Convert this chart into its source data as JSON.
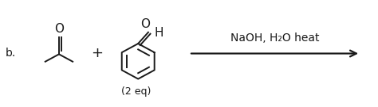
{
  "label_b": "b.",
  "plus_sign": "+",
  "eq_label": "(2 eq)",
  "arrow_text": "NaOH, H₂O heat",
  "bg_color": "#ffffff",
  "text_color": "#1a1a1a",
  "font_size_main": 10,
  "font_size_label": 10,
  "font_size_eq": 9,
  "fig_width": 4.74,
  "fig_height": 1.35,
  "dpi": 100
}
